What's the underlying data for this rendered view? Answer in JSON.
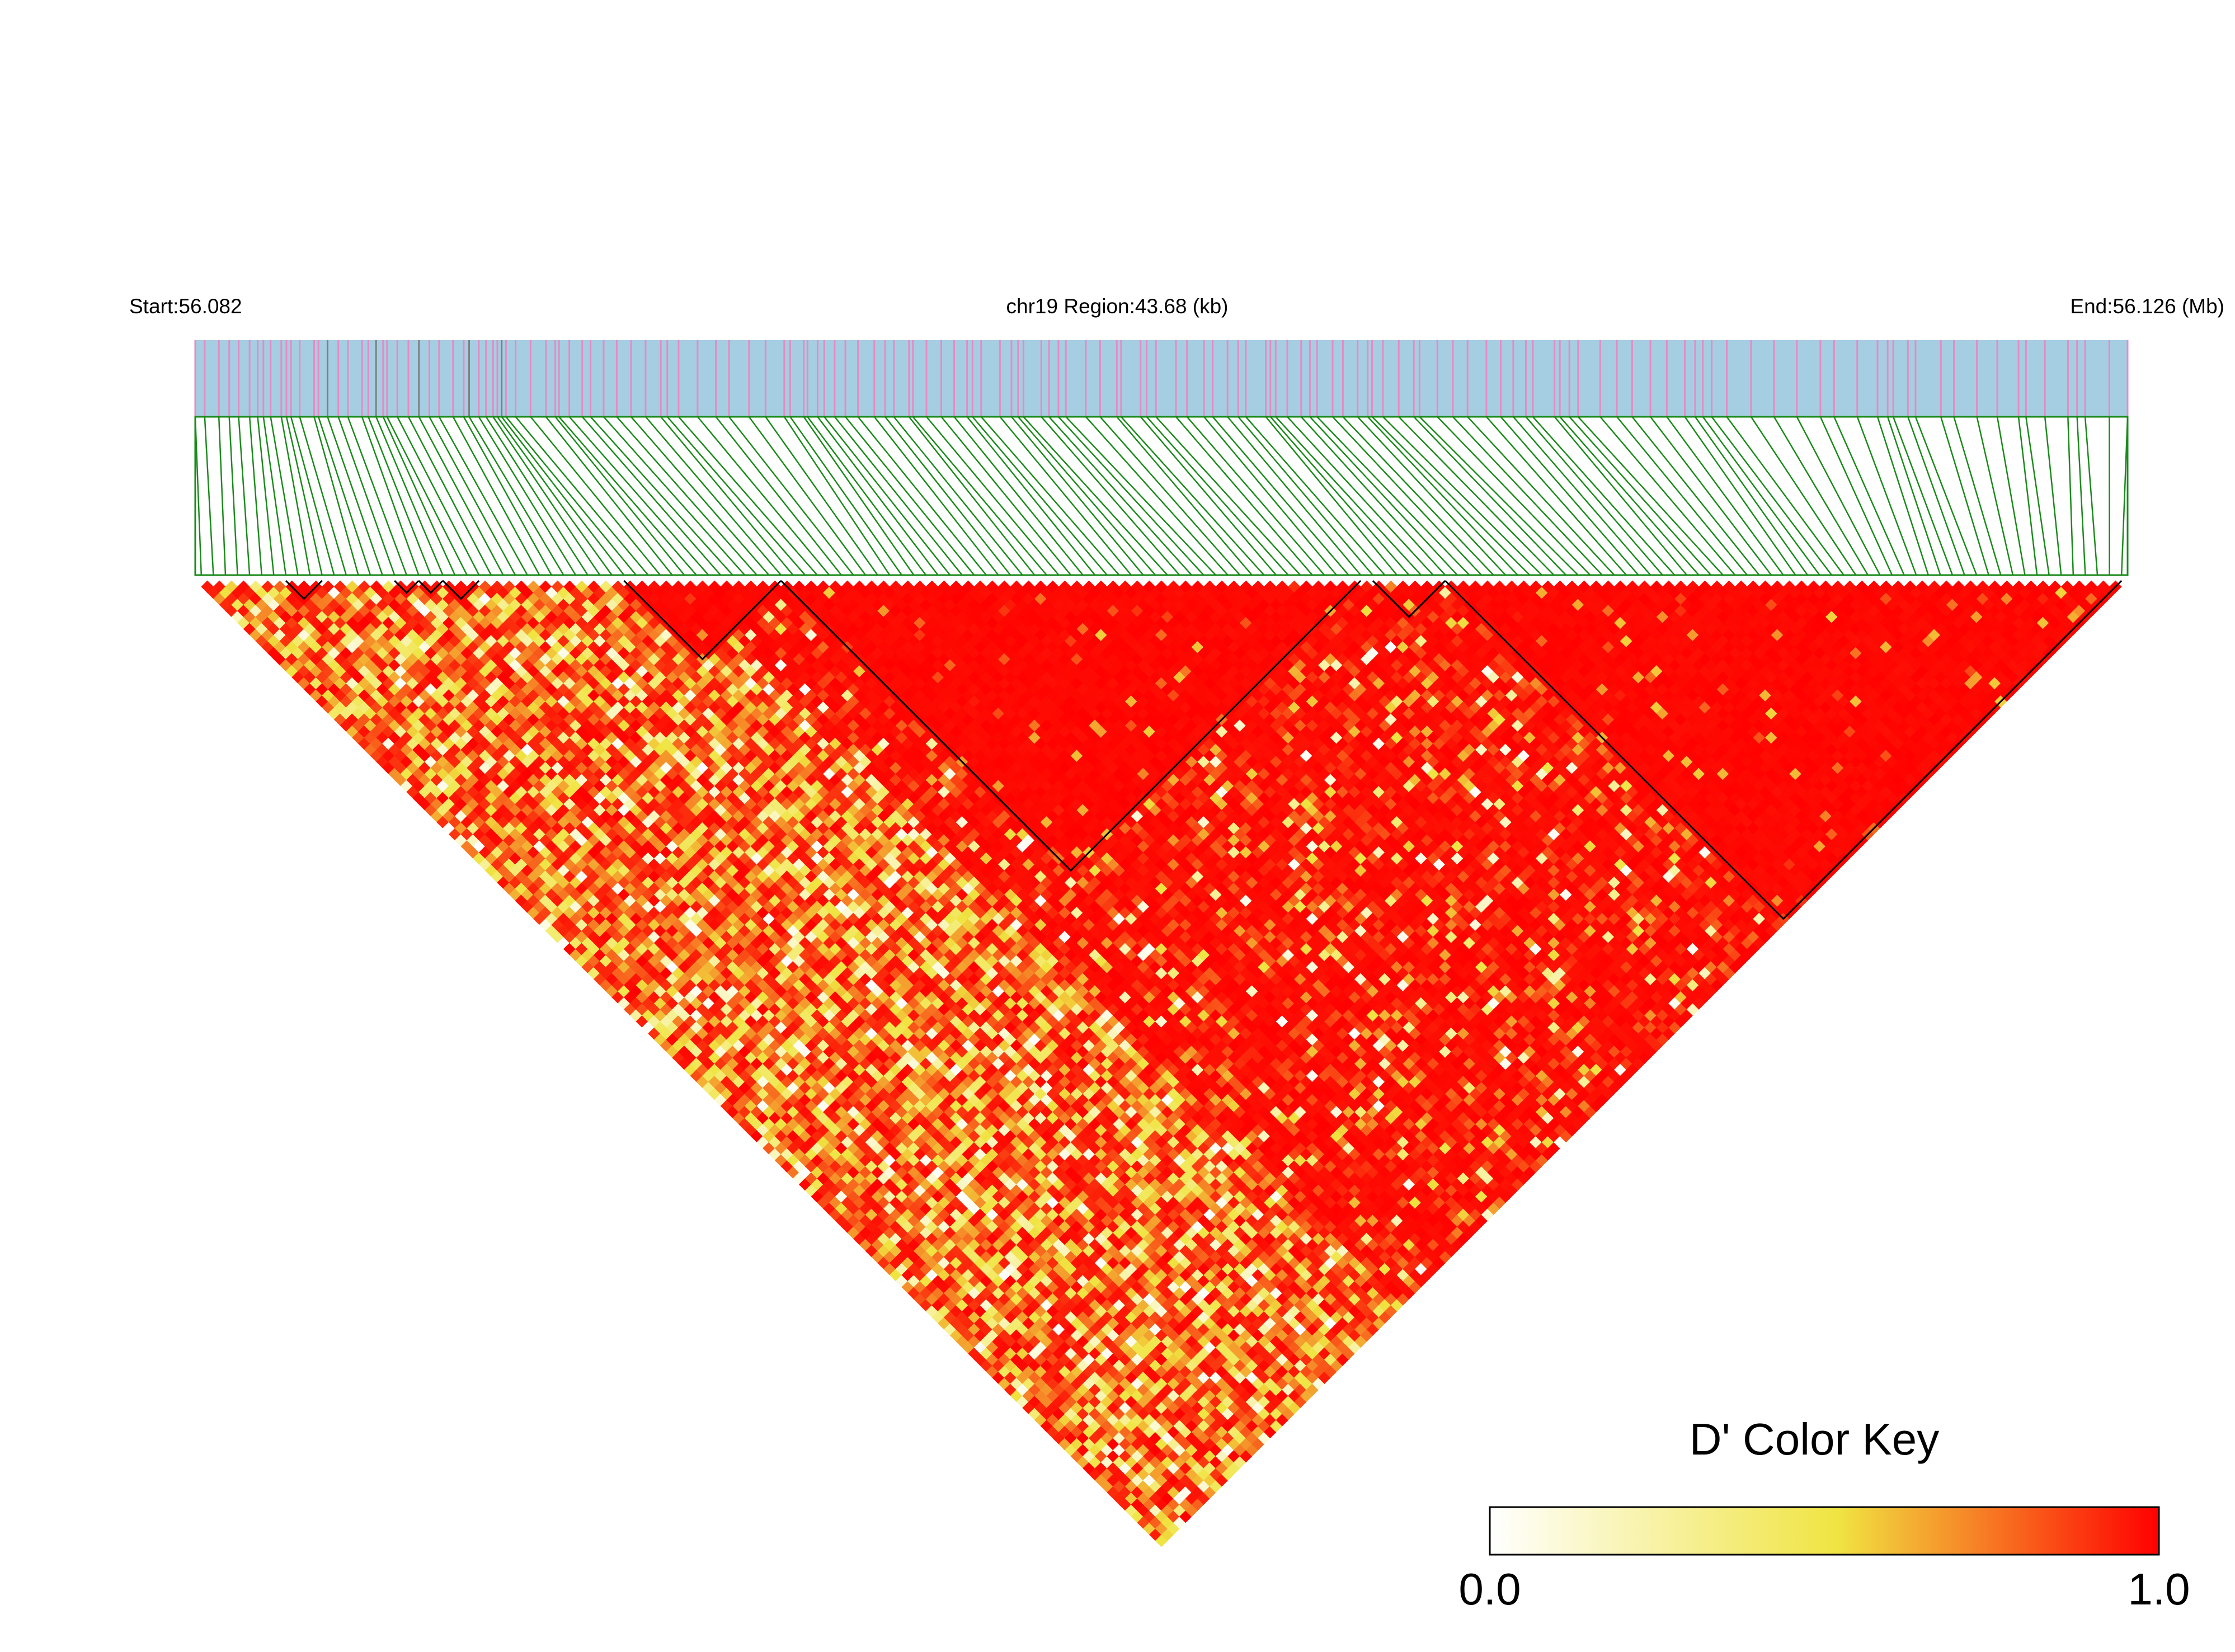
{
  "chart_data": {
    "type": "heatmap",
    "title": "chr19 Region:43.68 (kb)",
    "start_label": "Start:56.082",
    "end_label": "End:56.126 (Mb)",
    "region": {
      "chromosome": "chr19",
      "start_mb": 56.082,
      "end_mb": 56.126,
      "length_kb": 43.68
    },
    "measure": "D'",
    "color_key": {
      "title": "D' Color Key",
      "min_label": "0.0",
      "max_label": "1.0",
      "min": 0.0,
      "max": 1.0,
      "colors": [
        "#ffffff",
        "#f0e442",
        "#ff0000"
      ]
    },
    "colors": {
      "gene_track": "#a6cee3",
      "snp_marker": "#e78ac3",
      "snp_marker_dark": "#7f7f7f",
      "connector": "#1a8a1a",
      "block_outline": "#000000"
    },
    "snp_count": 160,
    "ld_blocks": [
      {
        "first_snp": 7,
        "last_snp": 10
      },
      {
        "first_snp": 16,
        "last_snp": 18
      },
      {
        "first_snp": 18,
        "last_snp": 20
      },
      {
        "first_snp": 20,
        "last_snp": 23
      },
      {
        "first_snp": 35,
        "last_snp": 48
      },
      {
        "first_snp": 48,
        "last_snp": 96
      },
      {
        "first_snp": 97,
        "last_snp": 103
      },
      {
        "first_snp": 103,
        "last_snp": 159
      }
    ]
  }
}
